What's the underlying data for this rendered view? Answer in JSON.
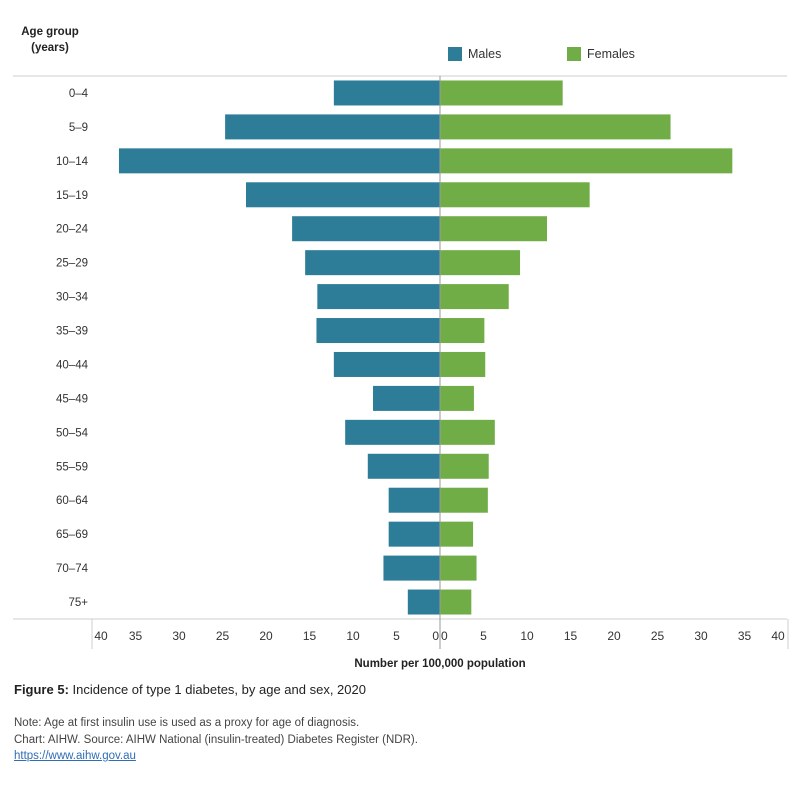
{
  "chart_data": {
    "type": "bar",
    "orientation": "horizontal-diverging",
    "categories": [
      "0–4",
      "5–9",
      "10–14",
      "15–19",
      "20–24",
      "25–29",
      "30–34",
      "35–39",
      "40–44",
      "45–49",
      "50–54",
      "55–59",
      "60–64",
      "65–69",
      "70–74",
      "75+"
    ],
    "series": [
      {
        "name": "Males",
        "color": "#2e7d98",
        "values": [
          12.2,
          24.7,
          36.9,
          22.3,
          17.0,
          15.5,
          14.1,
          14.2,
          12.2,
          7.7,
          10.9,
          8.3,
          5.9,
          5.9,
          6.5,
          3.7
        ]
      },
      {
        "name": "Females",
        "color": "#70ad47",
        "values": [
          14.1,
          26.5,
          33.6,
          17.2,
          12.3,
          9.2,
          7.9,
          5.1,
          5.2,
          3.9,
          6.3,
          5.6,
          5.5,
          3.8,
          4.2,
          3.6
        ]
      }
    ],
    "xticks_left": [
      "40",
      "35",
      "30",
      "25",
      "20",
      "15",
      "10",
      "5",
      "0"
    ],
    "xticks_right": [
      "0",
      "5",
      "10",
      "15",
      "20",
      "25",
      "30",
      "35",
      "40"
    ],
    "xlim": [
      0,
      40
    ],
    "xlabel": "Number per 100,000 population",
    "ylabel": "Age group (years)"
  },
  "ylabel_line1": "Age group",
  "ylabel_line2": "(years)",
  "legend": {
    "males": "Males",
    "females": "Females"
  },
  "figure_title_prefix": "Figure 5:",
  "figure_title": "Incidence of type 1 diabetes, by age and sex, 2020",
  "note": "Note: Age at first insulin use is used as a proxy for age of diagnosis.",
  "source": "Chart: AIHW. Source: AIHW National (insulin-treated) Diabetes Register (NDR).",
  "link": "https://www.aihw.gov.au"
}
